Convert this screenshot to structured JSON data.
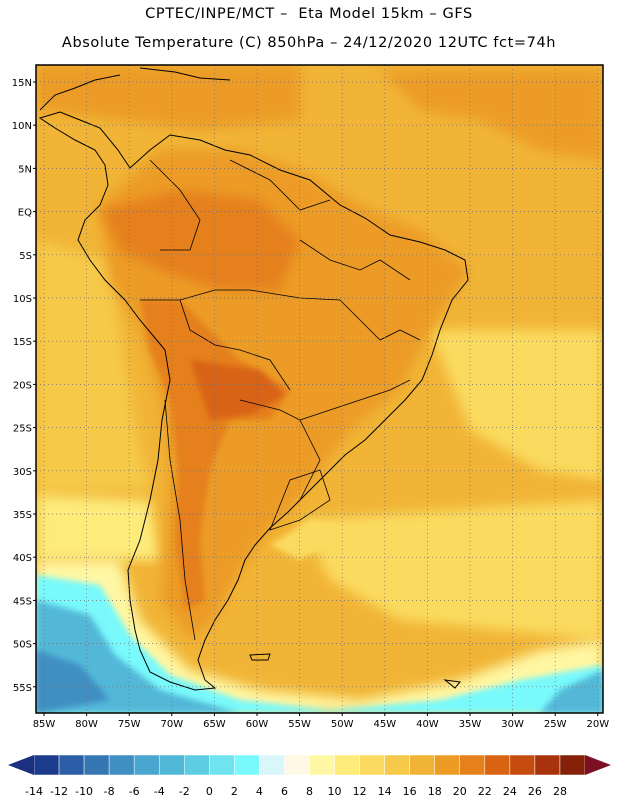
{
  "header": {
    "line1": "CPTEC/INPE/MCT –  Eta Model 15km – GFS",
    "line2": "Absolute Temperature (C) 850hPa – 24/12/2020 12UTC fct=74h"
  },
  "map": {
    "lat_labels": [
      "15N",
      "10N",
      "5N",
      "EQ",
      "5S",
      "10S",
      "15S",
      "20S",
      "25S",
      "30S",
      "35S",
      "40S",
      "45S",
      "50S",
      "55S"
    ],
    "lon_labels": [
      "85W",
      "80W",
      "75W",
      "70W",
      "65W",
      "60W",
      "55W",
      "50W",
      "45W",
      "40W",
      "35W",
      "30W",
      "25W",
      "20W"
    ]
  },
  "colorbar": {
    "ticks": [
      "-14",
      "-12",
      "-10",
      "-8",
      "-6",
      "-4",
      "-2",
      "0",
      "2",
      "4",
      "6",
      "8",
      "10",
      "12",
      "14",
      "16",
      "18",
      "20",
      "22",
      "24",
      "26",
      "28"
    ],
    "colors": [
      "#1c3b8c",
      "#2a5ea6",
      "#3576b3",
      "#3f8fc3",
      "#49a6cf",
      "#52b8d8",
      "#5ecde2",
      "#6fe3ee",
      "#79f9fb",
      "#d9f6fb",
      "#fff8e4",
      "#fff7a3",
      "#fdeb7a",
      "#fadb5f",
      "#f6c94a",
      "#f1b436",
      "#ec9c25",
      "#e5801b",
      "#d86412",
      "#c54c0e",
      "#a8320b",
      "#842108"
    ],
    "left_arrow_color": "#1d2f7f",
    "right_arrow_color": "#7d0f24"
  }
}
